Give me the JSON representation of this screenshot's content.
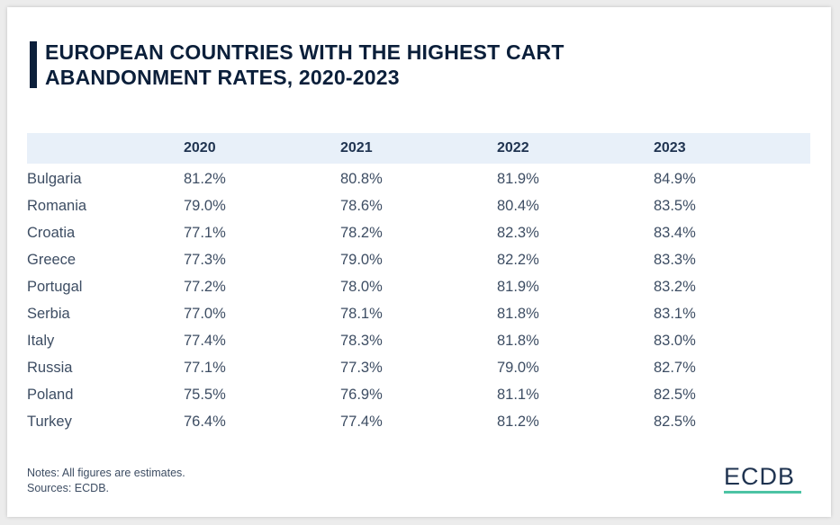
{
  "title": "EUROPEAN COUNTRIES WITH THE HIGHEST CART ABANDONMENT RATES, 2020-2023",
  "colors": {
    "accent": "#0b1f3a",
    "header_bg": "#e8f0f9",
    "logo_underline": "#4cc3a4"
  },
  "chart_data": {
    "type": "table",
    "title": "EUROPEAN COUNTRIES WITH THE HIGHEST CART ABANDONMENT RATES, 2020-2023",
    "columns": [
      "",
      "2020",
      "2021",
      "2022",
      "2023"
    ],
    "rows": [
      [
        "Bulgaria",
        "81.2%",
        "80.8%",
        "81.9%",
        "84.9%"
      ],
      [
        "Romania",
        "79.0%",
        "78.6%",
        "80.4%",
        "83.5%"
      ],
      [
        "Croatia",
        "77.1%",
        "78.2%",
        "82.3%",
        "83.4%"
      ],
      [
        "Greece",
        "77.3%",
        "79.0%",
        "82.2%",
        "83.3%"
      ],
      [
        "Portugal",
        "77.2%",
        "78.0%",
        "81.9%",
        "83.2%"
      ],
      [
        "Serbia",
        "77.0%",
        "78.1%",
        "81.8%",
        "83.1%"
      ],
      [
        "Italy",
        "77.4%",
        "78.3%",
        "81.8%",
        "83.0%"
      ],
      [
        "Russia",
        "77.1%",
        "77.3%",
        "79.0%",
        "82.7%"
      ],
      [
        "Poland",
        "75.5%",
        "76.9%",
        "81.1%",
        "82.5%"
      ],
      [
        "Turkey",
        "76.4%",
        "77.4%",
        "81.2%",
        "82.5%"
      ]
    ]
  },
  "notes": "Notes: All figures are estimates.",
  "sources": "Sources: ECDB.",
  "logo": "ECDB"
}
